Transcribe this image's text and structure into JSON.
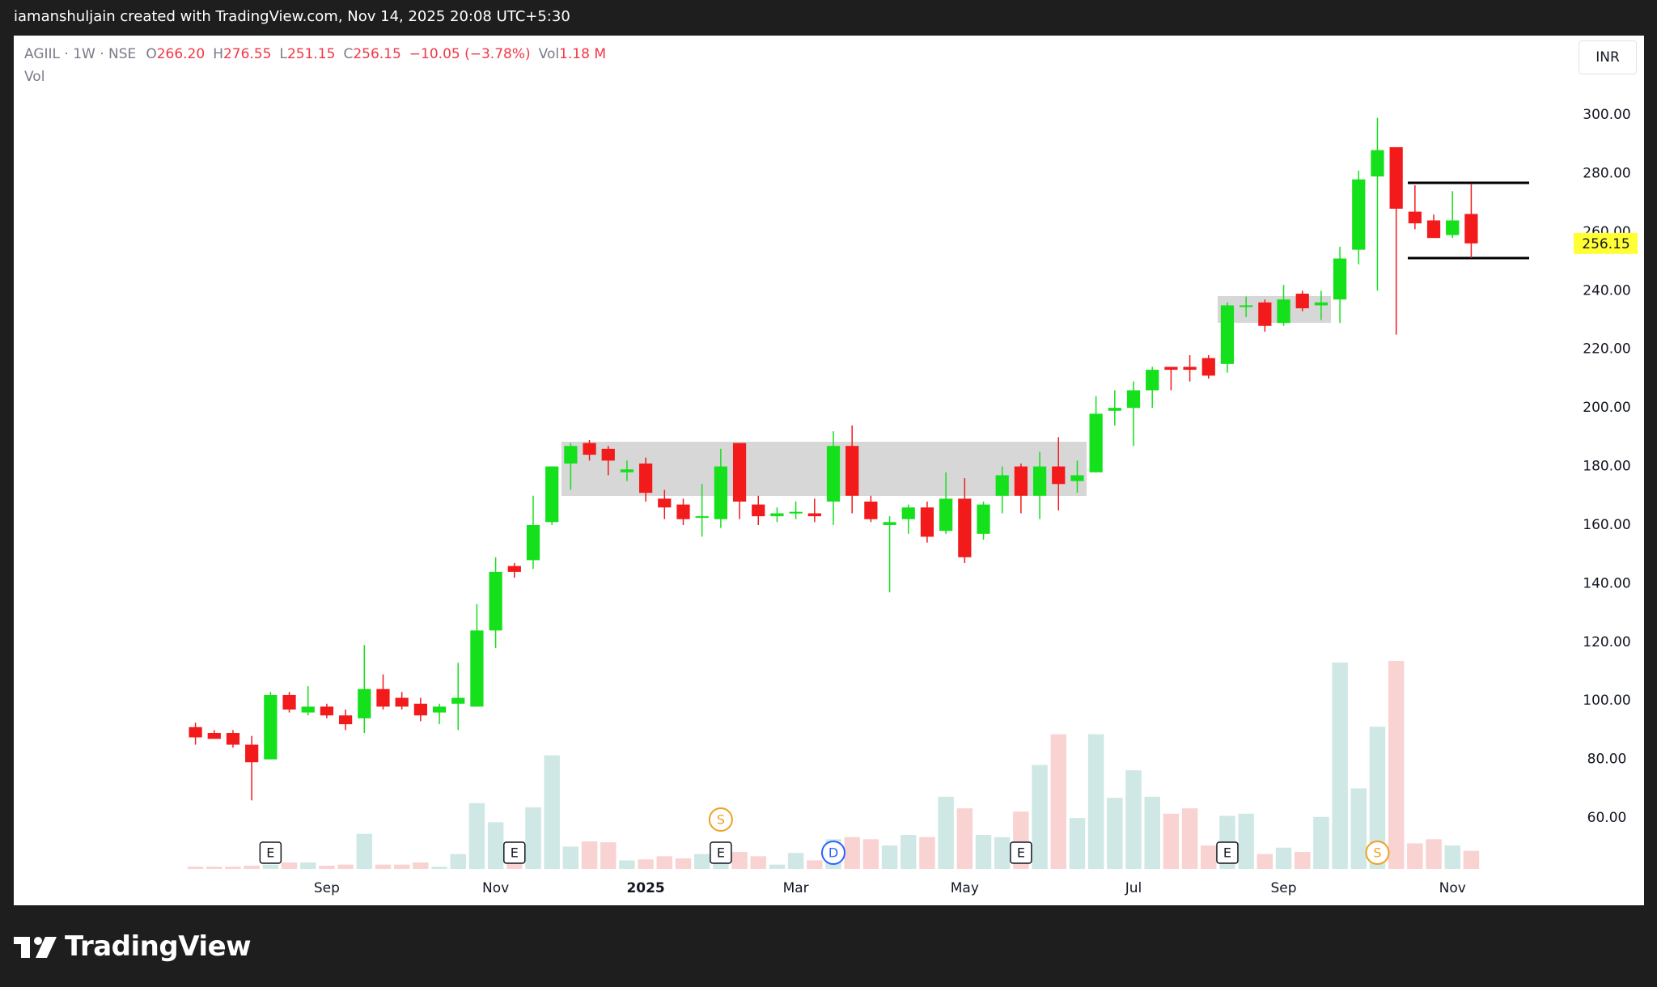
{
  "top_bar": "iamanshuljain created with TradingView.com, Nov 14, 2025 20:08 UTC+5:30",
  "brand": "TradingView",
  "currency_button": "INR",
  "legend": {
    "symbol": "AGIIL · 1W · NSE",
    "fields": [
      {
        "key": "O",
        "value": "266.20"
      },
      {
        "key": "H",
        "value": "276.55"
      },
      {
        "key": "L",
        "value": "251.15"
      },
      {
        "key": "C",
        "value": "256.15"
      }
    ],
    "change": "−10.05 (−3.78%)",
    "vol_key": "Vol",
    "vol_value": "1.18 M",
    "vol_pane": "Vol"
  },
  "chart_data": {
    "type": "candlestick",
    "categories": [
      null,
      null,
      null,
      null,
      null,
      null,
      null,
      "Sep",
      null,
      null,
      null,
      null,
      null,
      null,
      null,
      null,
      "Nov",
      null,
      null,
      null,
      null,
      null,
      null,
      null,
      "2025",
      null,
      null,
      null,
      null,
      null,
      null,
      null,
      "Mar",
      null,
      null,
      null,
      null,
      null,
      null,
      null,
      null,
      "May",
      null,
      null,
      null,
      null,
      null,
      null,
      null,
      null,
      "Jul",
      null,
      null,
      null,
      null,
      null,
      null,
      null,
      "Sep",
      null,
      null,
      null,
      null,
      null,
      null,
      null,
      null,
      "Nov",
      null
    ],
    "open": [
      91,
      89,
      89,
      85,
      80,
      102,
      96,
      98,
      95,
      94,
      104,
      101,
      99,
      96,
      99,
      98,
      124,
      146,
      148,
      161,
      181,
      188,
      186,
      178,
      181,
      169,
      167,
      163,
      162,
      188,
      167,
      163,
      164,
      164,
      168,
      187,
      168,
      160,
      162,
      166,
      158,
      169,
      157,
      170,
      180,
      170,
      180,
      175,
      178,
      199,
      200,
      206,
      214,
      214,
      217,
      215,
      235,
      236,
      229,
      239,
      235,
      237,
      254,
      279,
      289,
      267,
      264,
      259,
      266.2
    ],
    "high": [
      92.5,
      90,
      90,
      88,
      103,
      103,
      105,
      99,
      97,
      119,
      109,
      103,
      101,
      99,
      113,
      133,
      149,
      147,
      170,
      180,
      188,
      189,
      187,
      182,
      183,
      172,
      169,
      174,
      186,
      188,
      170,
      166,
      168,
      169,
      192,
      194,
      170,
      163,
      167,
      168,
      178,
      176,
      168,
      180,
      181,
      185,
      190,
      182,
      204,
      206,
      209,
      214,
      214,
      218,
      218,
      236,
      238,
      237,
      242,
      240,
      240,
      255,
      281,
      299,
      289,
      276,
      266,
      274,
      276.55
    ],
    "low": [
      85,
      87,
      84,
      66,
      80,
      96,
      95,
      94,
      90,
      89,
      97,
      97,
      93,
      92,
      90,
      98,
      118,
      142,
      145,
      160,
      172,
      182,
      177,
      175,
      168,
      162,
      160,
      156,
      159,
      162,
      160,
      161,
      162,
      161,
      160,
      164,
      161,
      137,
      157,
      154,
      157,
      147,
      155,
      164,
      164,
      162,
      165,
      171,
      178,
      194,
      187,
      200,
      206,
      209,
      210,
      212,
      231,
      226,
      228,
      233,
      230,
      229,
      249,
      240,
      225,
      261,
      258,
      258,
      251.15
    ],
    "close": [
      87.5,
      87,
      85,
      79,
      102,
      97,
      98,
      95,
      92,
      104,
      98,
      98,
      95,
      98,
      101,
      124,
      144,
      144,
      160,
      180,
      187,
      184,
      182,
      179,
      171,
      166,
      162,
      163,
      180,
      168,
      163,
      164,
      164.5,
      163,
      187,
      170,
      162,
      161,
      166,
      156,
      169,
      149,
      167,
      177,
      170,
      180,
      174,
      177,
      198,
      200,
      206,
      213,
      213,
      213,
      211,
      235,
      235,
      228,
      237,
      234,
      236,
      251,
      278,
      288,
      268,
      263,
      258,
      264,
      256.15
    ],
    "volume": [
      0.14,
      0.14,
      0.14,
      0.21,
      0.28,
      0.42,
      0.42,
      0.21,
      0.28,
      2.29,
      0.28,
      0.28,
      0.42,
      0.14,
      0.97,
      4.3,
      3.05,
      0.35,
      4.03,
      7.43,
      1.46,
      1.8,
      1.74,
      0.56,
      0.62,
      0.83,
      0.69,
      0.97,
      0.83,
      1.11,
      0.83,
      0.28,
      1.04,
      0.56,
      1.94,
      2.08,
      1.94,
      1.53,
      2.22,
      2.08,
      4.72,
      3.96,
      2.22,
      2.08,
      3.75,
      6.8,
      8.81,
      3.33,
      8.81,
      4.65,
      6.45,
      4.72,
      3.61,
      3.96,
      1.53,
      3.47,
      3.61,
      0.97,
      1.39,
      1.11,
      3.4,
      13.5,
      5.27,
      9.3,
      13.6,
      1.67,
      1.94,
      1.53,
      1.18
    ],
    "event_markers": [
      null,
      null,
      null,
      null,
      "E",
      null,
      null,
      null,
      null,
      null,
      null,
      null,
      null,
      null,
      null,
      null,
      null,
      "E",
      null,
      null,
      null,
      null,
      null,
      null,
      null,
      null,
      null,
      null,
      "E",
      null,
      null,
      null,
      null,
      null,
      "D",
      null,
      null,
      null,
      null,
      null,
      null,
      null,
      null,
      null,
      "E",
      null,
      null,
      null,
      null,
      null,
      null,
      null,
      null,
      null,
      null,
      "E",
      null,
      null,
      null,
      null,
      null,
      null,
      null,
      "S",
      null,
      null,
      null,
      null,
      null
    ],
    "event_markers_upper": [
      null,
      null,
      null,
      null,
      null,
      null,
      null,
      null,
      null,
      null,
      null,
      null,
      null,
      null,
      null,
      null,
      null,
      null,
      null,
      null,
      null,
      null,
      null,
      null,
      null,
      null,
      null,
      null,
      "S",
      null,
      null,
      null,
      null,
      null,
      null,
      null,
      null,
      null,
      null,
      null,
      null,
      null,
      null,
      null,
      null,
      null,
      null,
      null,
      null,
      null,
      null,
      null,
      null,
      null,
      null,
      null,
      null,
      null,
      null,
      null,
      null,
      null,
      null,
      null,
      null,
      null,
      null,
      null,
      null
    ],
    "ylim": [
      42.6,
      327.1
    ],
    "yticks": [
      {
        "value": 60,
        "label": "60.00"
      },
      {
        "value": 80,
        "label": "80.00"
      },
      {
        "value": 100,
        "label": "100.00"
      },
      {
        "value": 120,
        "label": "120.00"
      },
      {
        "value": 140,
        "label": "140.00"
      },
      {
        "value": 160,
        "label": "160.00"
      },
      {
        "value": 180,
        "label": "180.00"
      },
      {
        "value": 200,
        "label": "200.00"
      },
      {
        "value": 220,
        "label": "220.00"
      },
      {
        "value": 240,
        "label": "240.00"
      },
      {
        "value": 260,
        "label": "260.00"
      },
      {
        "value": 280,
        "label": "280.00"
      },
      {
        "value": 300,
        "label": "300.00"
      }
    ],
    "up_color": "#14e01c",
    "down_color": "#f21a1a",
    "volume_up_color": "#cfe8e5",
    "volume_down_color": "#f9d3d2",
    "last_price_color": "#ffff33"
  }
}
